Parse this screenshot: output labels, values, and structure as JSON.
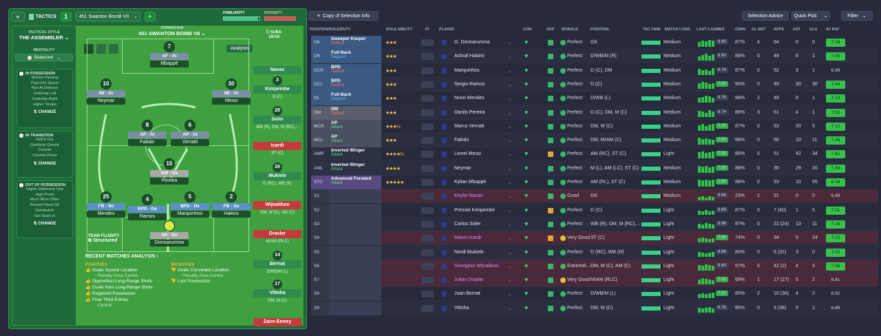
{
  "tactics": {
    "tab_label": "TACTICS",
    "slot": "1",
    "tactic_name": "451 Swanton BomB VII",
    "add": "+",
    "familiarity_label": "FAMILIARITY",
    "intensity_label": "INTENSITY",
    "style_label": "TACTICAL STYLE",
    "style_value": "THE ASSEMBLER",
    "mentality_label": "MENTALITY",
    "mentality_value": "Balanced",
    "formation_label": "FORMATION",
    "formation_value": "451 SWANTON BOMB VII",
    "subs_label": "SUBS:",
    "subs_value": "15/15",
    "analysis_button": "Analysis",
    "in_possession": {
      "title": "IN POSSESSION",
      "items": [
        "Shorter Passing",
        "Pass Into Space",
        "Run At Defence",
        "Underlap Left",
        "Underlap Right",
        "Higher Tempo"
      ],
      "change": "CHANGE"
    },
    "in_transition": {
      "title": "IN TRANSITION",
      "items": [
        "Roll It Out",
        "Distribute Quickly",
        "Counter",
        "Counter-Press"
      ],
      "change": "CHANGE"
    },
    "out_of_possession": {
      "title": "OUT OF POSSESSION",
      "items": [
        "Higher Defensive Line",
        "High Press",
        "Much More Often",
        "Prevent Short GK",
        "Distribution",
        "Get Stuck In"
      ],
      "change": "CHANGE"
    },
    "fluidity_label": "TEAM FLUIDITY",
    "fluidity_value": "Structured",
    "players": [
      {
        "num": "7",
        "role": "AF - At",
        "name": "Mbappé"
      },
      {
        "num": "10",
        "role": "IW - At",
        "name": "Neymar"
      },
      {
        "num": "30",
        "role": "IW - At",
        "name": "Messi"
      },
      {
        "num": "8",
        "role": "AP - At",
        "name": "Fabián"
      },
      {
        "num": "6",
        "role": "AP - At",
        "name": "Verratti"
      },
      {
        "num": "15",
        "role": "DM - De",
        "name": "Pereira"
      },
      {
        "num": "25",
        "role": "FB - Su",
        "name": "Mendes"
      },
      {
        "num": "4",
        "role": "BPD - De",
        "name": "Ramos"
      },
      {
        "num": "5",
        "role": "BPD - De",
        "name": "Marquinhos"
      },
      {
        "num": "2",
        "role": "FB - Su",
        "name": "Hakimi"
      },
      {
        "num": "",
        "role": "SK - De",
        "name": "Donnarumma"
      }
    ],
    "subs": [
      {
        "num": "",
        "name": "Navas",
        "role": "GK",
        "red": false
      },
      {
        "num": "3",
        "name": "Kimpembe",
        "role": "D (C)",
        "red": false
      },
      {
        "num": "28",
        "name": "Soler",
        "role": "WB (R), DM, M (RC),...",
        "red": false
      },
      {
        "num": "",
        "name": "Icardi",
        "role": "ST (C)",
        "red": true
      },
      {
        "num": "26",
        "name": "Mukiele",
        "role": "D (RC), WB (R)",
        "red": false
      },
      {
        "num": "",
        "name": "Wijnaldum",
        "role": "DM, M (C), AM (C)",
        "red": true
      },
      {
        "num": "",
        "name": "Draxler",
        "role": "M/AM (RLC)",
        "red": true
      },
      {
        "num": "14",
        "name": "Bernat",
        "role": "D/WB/M (L)",
        "red": false
      },
      {
        "num": "17",
        "name": "Vitinha",
        "role": "DM, M (C)",
        "red": false
      },
      {
        "num": "",
        "name": "Zaire-Emery",
        "role": "",
        "red": true
      }
    ],
    "recent_analysis": "RECENT MATCHES ANALYSIS",
    "positives_label": "POSITIVES",
    "negatives_label": "NEGATIVES",
    "positives": [
      "Goals Scored Location",
      "- Penalty Area Centre",
      "Opposition Long-Range Shots",
      "Goals from Long-Range Shots",
      "Regained Possession",
      "Final Third Entries",
      "- Central"
    ],
    "negatives": [
      "Goals Conceded Location",
      "- Penalty Area Centre",
      "Lost Possession"
    ]
  },
  "table": {
    "copy_button": "Copy of Selection Info",
    "selection_advice": "Selection Advice",
    "quick_pick": "Quick Pick",
    "filter": "Filter",
    "headers": [
      "POSITION/ROLE/DUTY",
      "ROLE ABILITY",
      "PI",
      "PLAYER",
      "CON",
      "SHP",
      "MORALE",
      "POSITION",
      "TAC FAMI",
      "MATCH LOAD",
      "LAST 5 GAMES",
      "GWIN",
      "GL MST",
      "APPS",
      "AST",
      "GLS",
      "AV RAT"
    ],
    "rows": [
      {
        "pos": "GK",
        "role": "Sweeper Keeper",
        "duty": "Defend",
        "stars": "★★★",
        "player": "G. Donnarumma",
        "morale": "Perfect",
        "position": "GK",
        "load": "Medium",
        "form": "6.90",
        "gwin": "87%",
        "glmst": "4",
        "apps": "54",
        "ast": "0",
        "gls": "0",
        "rat": "7.09",
        "hl": "#3a5a82",
        "shp": "g",
        "mor": "g"
      },
      {
        "pos": "DR",
        "role": "Full-Back",
        "duty": "Support",
        "stars": "★★★",
        "player": "Achraf Hakimi",
        "morale": "Perfect",
        "position": "D/WB/M (R)",
        "load": "Medium",
        "form": "6.90",
        "gwin": "86%",
        "glmst": "0",
        "apps": "49",
        "ast": "8",
        "gls": "1",
        "rat": "7.05",
        "hl": "#3a5a82",
        "shp": "g",
        "mor": "g"
      },
      {
        "pos": "DCR",
        "role": "BPD",
        "duty": "Defend",
        "stars": "★★★",
        "player": "Marquinhos",
        "morale": "Perfect",
        "position": "D (C), DM",
        "load": "Medium",
        "form": "6.74",
        "gwin": "87%",
        "glmst": "0",
        "apps": "52",
        "ast": "3",
        "gls": "1",
        "rat": "6.99",
        "hl": "#3a5a82",
        "shp": "g",
        "mor": "g"
      },
      {
        "pos": "DCL",
        "role": "BPD",
        "duty": "Defend",
        "stars": "★★★",
        "player": "Sergio Ramos",
        "morale": "Perfect",
        "position": "D (C)",
        "load": "Medium",
        "form": "7.00",
        "gwin": "90%",
        "glmst": "0",
        "apps": "49",
        "ast": "30",
        "gls": "30",
        "rat": "7.44",
        "hl": "#3a5a82",
        "shp": "g",
        "mor": "g"
      },
      {
        "pos": "DL",
        "role": "Full-Back",
        "duty": "Support",
        "stars": "★★★",
        "player": "Nuno Mendes",
        "morale": "Perfect",
        "position": "D/WB (L)",
        "load": "Medium",
        "form": "6.76",
        "gwin": "88%",
        "glmst": "2",
        "apps": "49",
        "ast": "8",
        "gls": "1",
        "rat": "7.13",
        "hl": "#3a5a82",
        "shp": "g",
        "mor": "g"
      },
      {
        "pos": "DM",
        "role": "DM",
        "duty": "Defend",
        "stars": "★★★",
        "player": "Danilo Pereira",
        "morale": "Perfect",
        "position": "D (C), DM, M (C)",
        "load": "Medium",
        "form": "6.74",
        "gwin": "86%",
        "glmst": "3",
        "apps": "51",
        "ast": "4",
        "gls": "1",
        "rat": "7.02",
        "hl": "#5a5e6e",
        "shp": "g",
        "mor": "g"
      },
      {
        "pos": "MCR",
        "role": "AP",
        "duty": "Attack",
        "stars": "★★★½",
        "player": "Marco Verratti",
        "morale": "Perfect",
        "position": "DM, M (C)",
        "load": "Medium",
        "form": "7.30",
        "gwin": "87%",
        "glmst": "0",
        "apps": "53",
        "ast": "20",
        "gls": "5",
        "rat": "7.12",
        "hl": "#4a4f62",
        "shp": "g",
        "mor": "g"
      },
      {
        "pos": "MCL",
        "role": "AP",
        "duty": "Attack",
        "stars": "★★★",
        "player": "Fabián",
        "morale": "Perfect",
        "position": "DM, M/AM (C)",
        "load": "Medium",
        "form": "7.00",
        "gwin": "88%",
        "glmst": "0",
        "apps": "50",
        "ast": "10",
        "gls": "11",
        "rat": "7.26",
        "hl": "#4a4f62",
        "shp": "g",
        "mor": "g"
      },
      {
        "pos": "AMR",
        "role": "Inverted Winger",
        "duty": "Attack",
        "stars": "★★★★½",
        "player": "Lionel Messi",
        "morale": "Perfect",
        "position": "AM (RC), ST (C)",
        "load": "Light",
        "form": "7.29",
        "gwin": "86%",
        "glmst": "0",
        "apps": "51",
        "ast": "42",
        "gls": "34",
        "rat": "7.61",
        "hl": "#2c3144",
        "shp": "y",
        "mor": "g"
      },
      {
        "pos": "AML",
        "role": "Inverted Winger",
        "duty": "Attack",
        "stars": "★★★★",
        "player": "Neymar",
        "morale": "Perfect",
        "position": "M (L), AM (LC), ST (C)",
        "load": "Medium",
        "form": "7.50",
        "gwin": "88%",
        "glmst": "0",
        "apps": "35",
        "ast": "29",
        "gls": "20",
        "rat": "7.59",
        "hl": "#2c3144",
        "shp": "g",
        "mor": "g"
      },
      {
        "pos": "STC",
        "role": "Advanced Forward",
        "duty": "Attack",
        "stars": "★★★★★",
        "player": "Kylian Mbappé",
        "morale": "Perfect",
        "position": "AM (RL), ST (C)",
        "load": "Medium",
        "form": "7.54",
        "gwin": "88%",
        "glmst": "0",
        "apps": "33",
        "ast": "10",
        "gls": "55",
        "rat": "8.34",
        "hl": "#5a4a82",
        "shp": "g",
        "mor": "g"
      },
      {
        "pos": "S1",
        "role": "",
        "duty": "",
        "stars": "",
        "player": "Keylor Navas",
        "morale": "Good",
        "position": "GK",
        "load": "Medium",
        "form": "6.88",
        "gwin": "23%",
        "glmst": "1",
        "apps": "31",
        "ast": "0",
        "gls": "0",
        "rat": "6.69",
        "hl": "",
        "shp": "g",
        "mor": "g",
        "red": true
      },
      {
        "pos": "S2",
        "role": "",
        "duty": "",
        "stars": "",
        "player": "Presnel Kimpembe",
        "morale": "Perfect",
        "position": "D (C)",
        "load": "Light",
        "form": "6.68",
        "gwin": "87%",
        "glmst": "0",
        "apps": "7 (40)",
        "ast": "1",
        "gls": "5",
        "rat": "7.01",
        "hl": "",
        "shp": "y",
        "mor": "g"
      },
      {
        "pos": "S3",
        "role": "",
        "duty": "",
        "stars": "",
        "player": "Carlos Soler",
        "morale": "Perfect",
        "position": "WB (R), DM, M (RC),...",
        "load": "Light",
        "form": "6.96",
        "gwin": "87%",
        "glmst": "0",
        "apps": "22 (24)",
        "ast": "13",
        "gls": "11",
        "rat": "7.16",
        "hl": "",
        "shp": "g",
        "mor": "g"
      },
      {
        "pos": "S4",
        "role": "",
        "duty": "",
        "stars": "",
        "player": "Mauro Icardi",
        "morale": "Very Good",
        "position": "ST (C)",
        "load": "Light",
        "form": "7.36",
        "gwin": "74%",
        "glmst": "0",
        "apps": "34",
        "ast": "5",
        "gls": "24",
        "rat": "7.22",
        "hl": "",
        "shp": "y",
        "mor": "y",
        "red": true
      },
      {
        "pos": "S5",
        "role": "",
        "duty": "",
        "stars": "",
        "player": "Nordi Mukiele",
        "morale": "Perfect",
        "position": "D (RC), WB (R)",
        "load": "Light",
        "form": "6.88",
        "gwin": "80%",
        "glmst": "0",
        "apps": "5 (31)",
        "ast": "3",
        "gls": "0",
        "rat": "7.03",
        "hl": "",
        "shp": "g",
        "mor": "g"
      },
      {
        "pos": "S6",
        "role": "",
        "duty": "",
        "stars": "",
        "player": "Georginio Wijnaldum",
        "morale": "Extremel...",
        "position": "DM, M (C), AM (C)",
        "load": "Light",
        "form": "6.80",
        "gwin": "57%",
        "glmst": "0",
        "apps": "42 (2)",
        "ast": "4",
        "gls": "3",
        "rat": "7.08",
        "hl": "",
        "shp": "g",
        "mor": "g",
        "red": true
      },
      {
        "pos": "S7",
        "role": "",
        "duty": "",
        "stars": "",
        "player": "Julian Draxler",
        "morale": "Very Good",
        "position": "M/AM (RLC)",
        "load": "Light",
        "form": "7.02",
        "gwin": "68%",
        "glmst": "1",
        "apps": "17 (27)",
        "ast": "5",
        "gls": "2",
        "rat": "6.81",
        "hl": "",
        "shp": "g",
        "mor": "y",
        "red": true
      },
      {
        "pos": "S8",
        "role": "",
        "duty": "",
        "stars": "",
        "player": "Juan Bernat",
        "morale": "Perfect",
        "position": "D/WB/M (L)",
        "load": "Light",
        "form": "7.02",
        "gwin": "85%",
        "glmst": "2",
        "apps": "10 (36)",
        "ast": "4",
        "gls": "2",
        "rat": "6.92",
        "hl": "",
        "shp": "g",
        "mor": "g"
      },
      {
        "pos": "S9",
        "role": "",
        "duty": "",
        "stars": "",
        "player": "Vitinha",
        "morale": "Perfect",
        "position": "DM, M (C)",
        "load": "Light",
        "form": "6.76",
        "gwin": "85%",
        "glmst": "0",
        "apps": "3 (38)",
        "ast": "5",
        "gls": "1",
        "rat": "6.86",
        "hl": "",
        "shp": "g",
        "mor": "g"
      }
    ]
  }
}
